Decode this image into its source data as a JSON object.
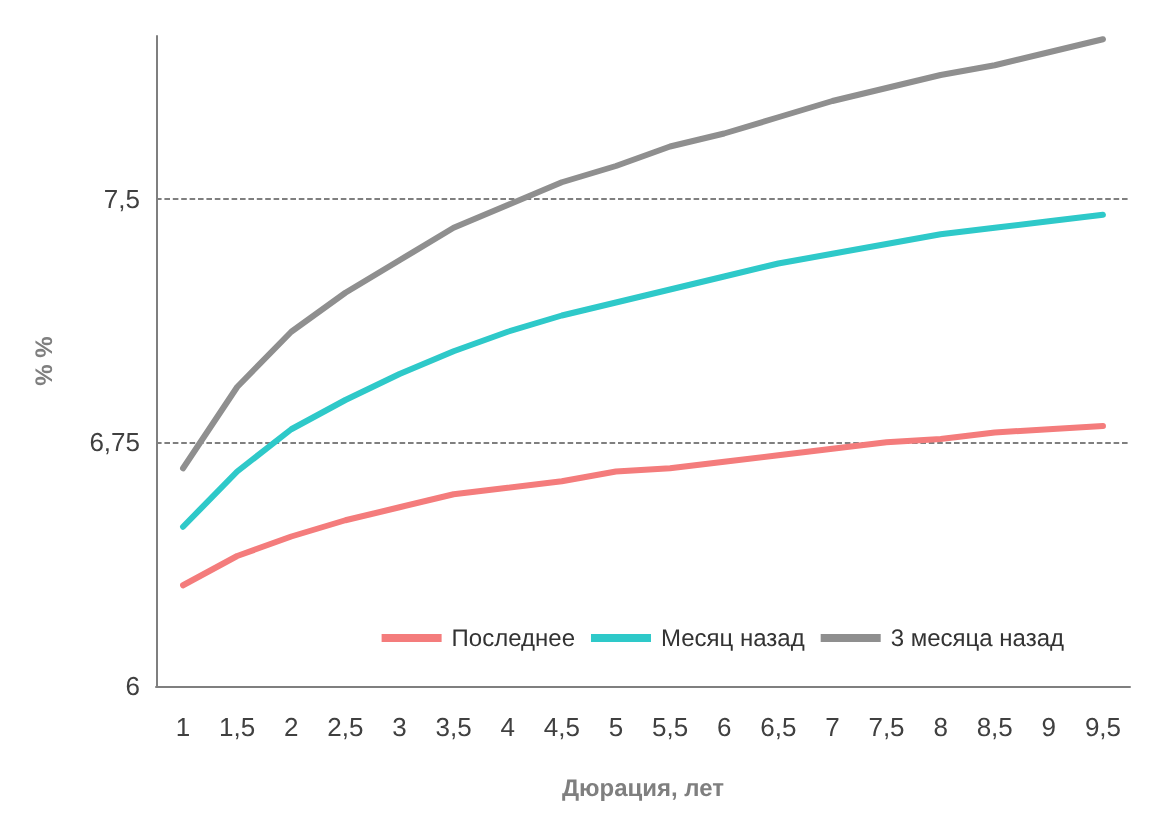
{
  "chart_data": {
    "type": "line",
    "xlabel": "Дюрация, лет",
    "ylabel": "% %",
    "categories": [
      "1",
      "1,5",
      "2",
      "2,5",
      "3",
      "3,5",
      "4",
      "4,5",
      "5",
      "5,5",
      "6",
      "6,5",
      "7",
      "7,5",
      "8",
      "8,5",
      "9",
      "9,5"
    ],
    "series": [
      {
        "name": "Последнее",
        "color": "#f47c7c",
        "values": [
          6.31,
          6.4,
          6.46,
          6.51,
          6.55,
          6.59,
          6.61,
          6.63,
          6.66,
          6.67,
          6.69,
          6.71,
          6.73,
          6.75,
          6.76,
          6.78,
          6.79,
          6.8
        ]
      },
      {
        "name": "Месяц назад",
        "color": "#2ec9c9",
        "values": [
          6.49,
          6.66,
          6.79,
          6.88,
          6.96,
          7.03,
          7.09,
          7.14,
          7.18,
          7.22,
          7.26,
          7.3,
          7.33,
          7.36,
          7.39,
          7.41,
          7.43,
          7.45
        ]
      },
      {
        "name": "3 месяца назад",
        "color": "#8f8f8f",
        "values": [
          6.67,
          6.92,
          7.09,
          7.21,
          7.31,
          7.41,
          7.48,
          7.55,
          7.6,
          7.66,
          7.7,
          7.75,
          7.8,
          7.84,
          7.88,
          7.91,
          7.95,
          7.99
        ]
      }
    ],
    "ylim": [
      6,
      8
    ],
    "yticks": [
      {
        "value": 6,
        "label": "6"
      },
      {
        "value": 6.75,
        "label": "6,75"
      },
      {
        "value": 7.5,
        "label": "7,5"
      }
    ],
    "grid": "y",
    "legend": "bottom right",
    "marker": "none",
    "line_style": "solid"
  }
}
